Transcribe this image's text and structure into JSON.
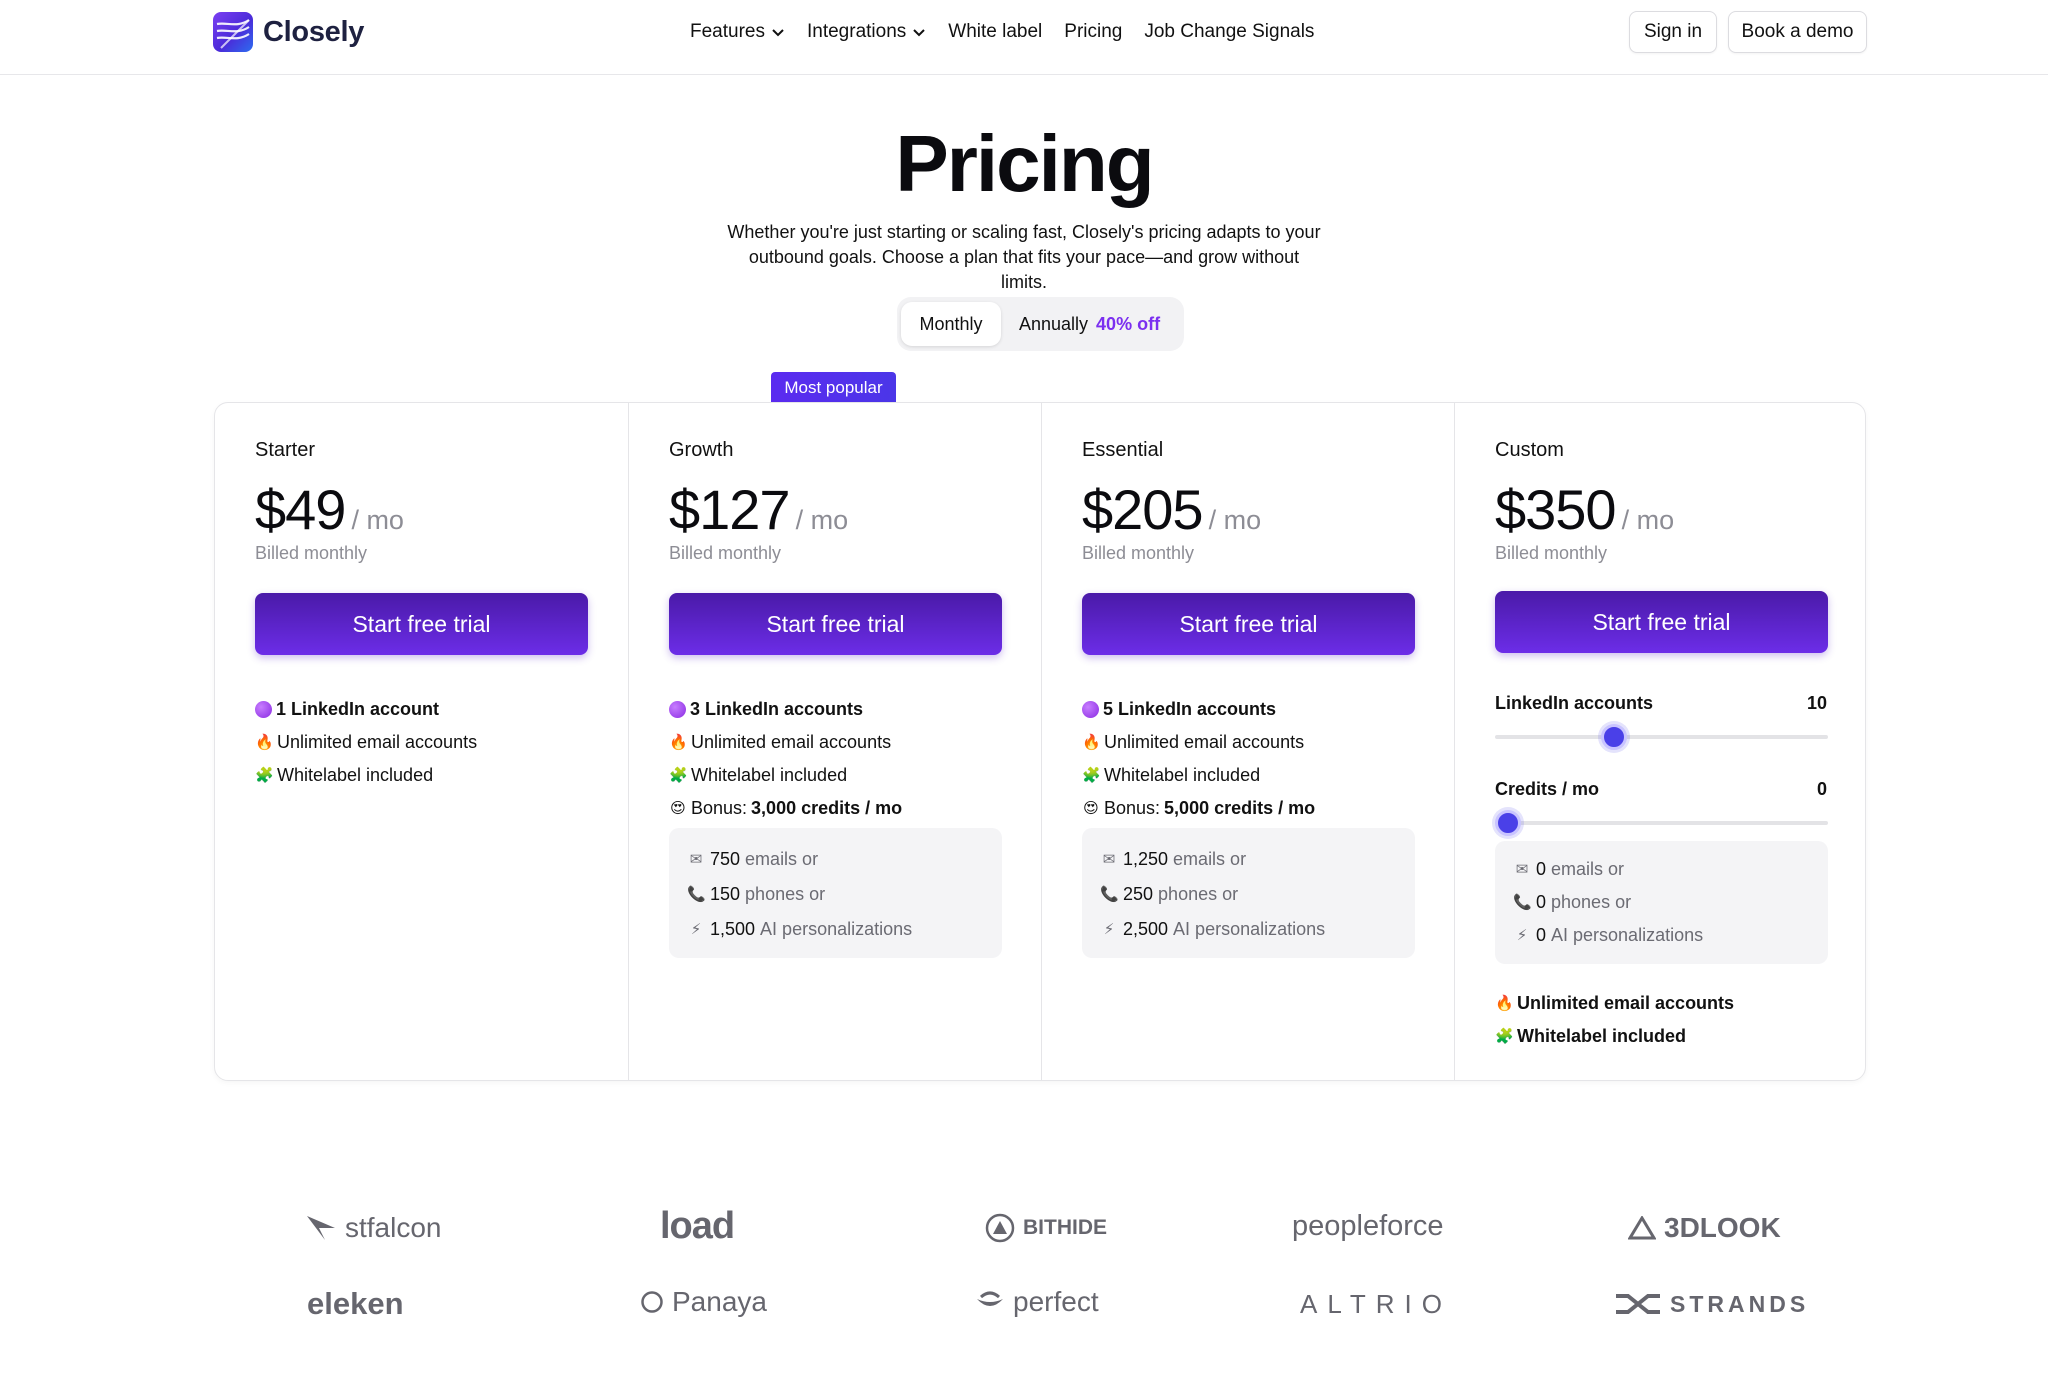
{
  "header": {
    "brand": "Closely",
    "nav": [
      {
        "label": "Features",
        "has_dropdown": true
      },
      {
        "label": "Integrations",
        "has_dropdown": true
      },
      {
        "label": "White label",
        "has_dropdown": false
      },
      {
        "label": "Pricing",
        "has_dropdown": false
      },
      {
        "label": "Job Change Signals",
        "has_dropdown": false
      }
    ],
    "sign_in": "Sign in",
    "book_demo": "Book a demo"
  },
  "hero": {
    "title": "Pricing",
    "subtitle": "Whether you're just starting or scaling fast, Closely's pricing adapts to your outbound goals. Choose a plan that fits your pace—and grow without limits."
  },
  "billing_toggle": {
    "monthly": "Monthly",
    "annually": "Annually",
    "discount": "40% off",
    "selected": "Monthly"
  },
  "badge": "Most popular",
  "plans": [
    {
      "name": "Starter",
      "price": "$49",
      "period": "/ mo",
      "billed": "Billed monthly",
      "cta": "Start free trial",
      "features": {
        "accounts": "1 LinkedIn account",
        "emails": "Unlimited email accounts",
        "whitelabel": "Whitelabel included"
      }
    },
    {
      "name": "Growth",
      "price": "$127",
      "period": "/ mo",
      "billed": "Billed monthly",
      "cta": "Start free trial",
      "features": {
        "accounts": "3 LinkedIn accounts",
        "emails": "Unlimited email accounts",
        "whitelabel": "Whitelabel included",
        "bonus_prefix": "Bonus:",
        "bonus": "3,000 credits / mo"
      },
      "credits": [
        {
          "icon": "envelope-icon",
          "value": "750",
          "label": "emails or"
        },
        {
          "icon": "phone-icon",
          "value": "150",
          "label": "phones or"
        },
        {
          "icon": "lightning-icon",
          "value": "1,500",
          "label": "AI personalizations"
        }
      ]
    },
    {
      "name": "Essential",
      "price": "$205",
      "period": "/ mo",
      "billed": "Billed monthly",
      "cta": "Start free trial",
      "features": {
        "accounts": "5 LinkedIn accounts",
        "emails": "Unlimited email accounts",
        "whitelabel": "Whitelabel included",
        "bonus_prefix": "Bonus:",
        "bonus": "5,000 credits / mo"
      },
      "credits": [
        {
          "icon": "envelope-icon",
          "value": "1,250",
          "label": "emails or"
        },
        {
          "icon": "phone-icon",
          "value": "250",
          "label": "phones or"
        },
        {
          "icon": "lightning-icon",
          "value": "2,500",
          "label": "AI personalizations"
        }
      ]
    },
    {
      "name": "Custom",
      "price": "$350",
      "period": "/ mo",
      "billed": "Billed monthly",
      "cta": "Start free trial",
      "sliders": [
        {
          "label": "LinkedIn accounts",
          "value": "10",
          "fraction": 0.345
        },
        {
          "label": "Credits / mo",
          "value": "0",
          "fraction": 0.0
        }
      ],
      "credits": [
        {
          "icon": "envelope-icon",
          "value": "0",
          "label": "emails or"
        },
        {
          "icon": "phone-icon",
          "value": "0",
          "label": "phones or"
        },
        {
          "icon": "lightning-icon",
          "value": "0",
          "label": "AI personalizations"
        }
      ],
      "features": {
        "emails": "Unlimited email accounts",
        "whitelabel": "Whitelabel included"
      }
    }
  ],
  "client_logos": [
    "stfalcon",
    "load",
    "BITHIDE",
    "peopleforce",
    "3DLOOK",
    "eleken",
    "Panaya",
    "perfect",
    "ALTRIO",
    "STRANDS"
  ]
}
